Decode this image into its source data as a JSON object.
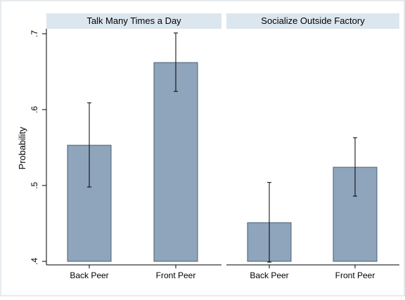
{
  "chart_data": {
    "type": "bar",
    "ylabel": "Probability",
    "ylim": [
      0.4,
      0.7
    ],
    "yticks": [
      0.4,
      0.5,
      0.6,
      0.7
    ],
    "ytick_labels": [
      ".4",
      ".5",
      ".6",
      ".7"
    ],
    "error_bars": true,
    "grid": false,
    "colors": {
      "bar_fill": "#8ea5bc",
      "bar_stroke": "#4a5f73",
      "panel_header": "#dce6ee",
      "frame": "#e6ebf0"
    },
    "panels": [
      {
        "title": "Talk Many Times a Day",
        "categories": [
          "Back Peer",
          "Front Peer"
        ],
        "values": [
          0.553,
          0.662
        ],
        "ci_low": [
          0.498,
          0.624
        ],
        "ci_high": [
          0.609,
          0.701
        ]
      },
      {
        "title": "Socialize Outside Factory",
        "categories": [
          "Back Peer",
          "Front Peer"
        ],
        "values": [
          0.451,
          0.524
        ],
        "ci_low": [
          0.399,
          0.486
        ],
        "ci_high": [
          0.504,
          0.563
        ]
      }
    ]
  }
}
